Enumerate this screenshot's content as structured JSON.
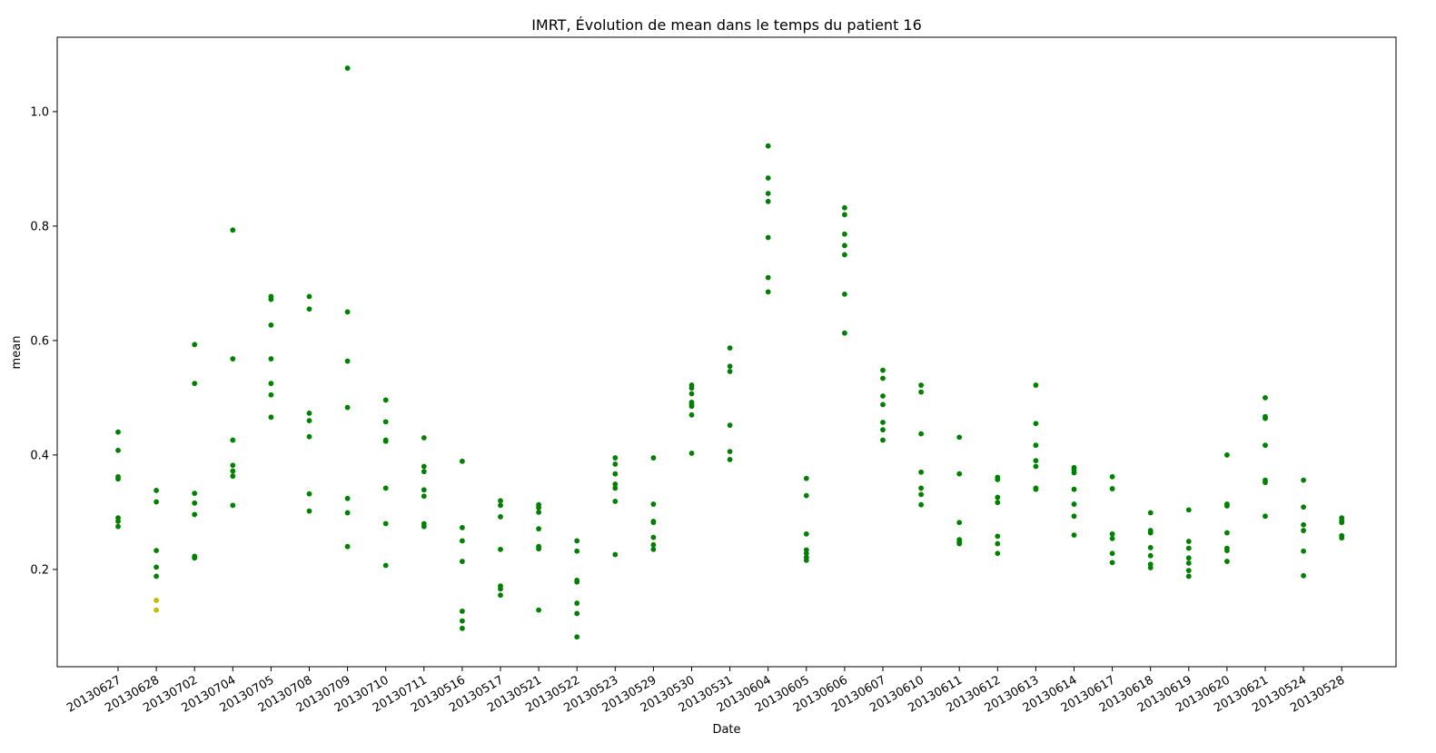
{
  "chart_data": {
    "type": "scatter",
    "title": "IMRT, Évolution de mean dans le temps du patient 16",
    "xlabel": "Date",
    "ylabel": "mean",
    "ylim": [
      0.03,
      1.13
    ],
    "yticks": [
      "0.2",
      "0.4",
      "0.6",
      "0.8",
      "1.0"
    ],
    "ytick_values": [
      0.2,
      0.4,
      0.6,
      0.8,
      1.0
    ],
    "grid": false,
    "legend": "none",
    "colors": {
      "normal": "#008000",
      "highlight": "#bfbf00"
    },
    "categories": [
      "20130627",
      "20130628",
      "20130702",
      "20130704",
      "20130705",
      "20130708",
      "20130709",
      "20130710",
      "20130711",
      "20130516",
      "20130517",
      "20130521",
      "20130522",
      "20130523",
      "20130529",
      "20130530",
      "20130531",
      "20130604",
      "20130605",
      "20130606",
      "20130607",
      "20130610",
      "20130611",
      "20130612",
      "20130613",
      "20130614",
      "20130617",
      "20130618",
      "20130619",
      "20130620",
      "20130621",
      "20130524",
      "20130528"
    ],
    "series": [
      {
        "color": "#008000",
        "values": [
          [
            0.44,
            0.408,
            0.362,
            0.358,
            0.29,
            0.284,
            0.275
          ],
          [
            0.338,
            0.318,
            0.233,
            0.204,
            0.188
          ],
          [
            0.593,
            0.525,
            0.333,
            0.316,
            0.296,
            0.223,
            0.22
          ],
          [
            0.793,
            0.568,
            0.426,
            0.382,
            0.372,
            0.363,
            0.312
          ],
          [
            0.677,
            0.672,
            0.627,
            0.568,
            0.525,
            0.505,
            0.466
          ],
          [
            0.677,
            0.655,
            0.473,
            0.46,
            0.432,
            0.332,
            0.302
          ],
          [
            1.076,
            0.65,
            0.564,
            0.483,
            0.324,
            0.299,
            0.24
          ],
          [
            0.496,
            0.458,
            0.426,
            0.424,
            0.342,
            0.28,
            0.207
          ],
          [
            0.43,
            0.38,
            0.371,
            0.339,
            0.328,
            0.28,
            0.275
          ],
          [
            0.389,
            0.273,
            0.25,
            0.214,
            0.127,
            0.11,
            0.097
          ],
          [
            0.32,
            0.312,
            0.292,
            0.235,
            0.171,
            0.166,
            0.155
          ],
          [
            0.313,
            0.308,
            0.3,
            0.271,
            0.24,
            0.236,
            0.129
          ],
          [
            0.25,
            0.232,
            0.181,
            0.178,
            0.141,
            0.123,
            0.082
          ],
          [
            0.395,
            0.384,
            0.367,
            0.349,
            0.342,
            0.319,
            0.226
          ],
          [
            0.395,
            0.314,
            0.284,
            0.282,
            0.256,
            0.243,
            0.235
          ],
          [
            0.522,
            0.517,
            0.507,
            0.492,
            0.488,
            0.485,
            0.47,
            0.403
          ],
          [
            0.587,
            0.555,
            0.546,
            0.452,
            0.406,
            0.392
          ],
          [
            0.94,
            0.884,
            0.857,
            0.843,
            0.78,
            0.71,
            0.685
          ],
          [
            0.359,
            0.329,
            0.262,
            0.234,
            0.228,
            0.221,
            0.216
          ],
          [
            0.832,
            0.82,
            0.786,
            0.766,
            0.75,
            0.681,
            0.613
          ],
          [
            0.548,
            0.534,
            0.503,
            0.488,
            0.457,
            0.444,
            0.426
          ],
          [
            0.522,
            0.51,
            0.437,
            0.37,
            0.342,
            0.331,
            0.313
          ],
          [
            0.431,
            0.367,
            0.282,
            0.252,
            0.248,
            0.245
          ],
          [
            0.361,
            0.357,
            0.326,
            0.317,
            0.258,
            0.245,
            0.228
          ],
          [
            0.522,
            0.455,
            0.417,
            0.39,
            0.38,
            0.342,
            0.34
          ],
          [
            0.378,
            0.374,
            0.369,
            0.34,
            0.314,
            0.293,
            0.26
          ],
          [
            0.362,
            0.341,
            0.262,
            0.254,
            0.228,
            0.212
          ],
          [
            0.299,
            0.268,
            0.264,
            0.238,
            0.224,
            0.209,
            0.203
          ],
          [
            0.304,
            0.249,
            0.237,
            0.22,
            0.211,
            0.198,
            0.188
          ],
          [
            0.4,
            0.314,
            0.311,
            0.264,
            0.237,
            0.233,
            0.214
          ],
          [
            0.5,
            0.467,
            0.464,
            0.417,
            0.356,
            0.352,
            0.293
          ],
          [
            0.356,
            0.309,
            0.278,
            0.268,
            0.232,
            0.189
          ],
          [
            0.29,
            0.285,
            0.282,
            0.259,
            0.255
          ]
        ]
      },
      {
        "color": "#bfbf00",
        "points": [
          {
            "category": "20130628",
            "y": 0.146
          },
          {
            "category": "20130628",
            "y": 0.129
          }
        ]
      }
    ]
  }
}
